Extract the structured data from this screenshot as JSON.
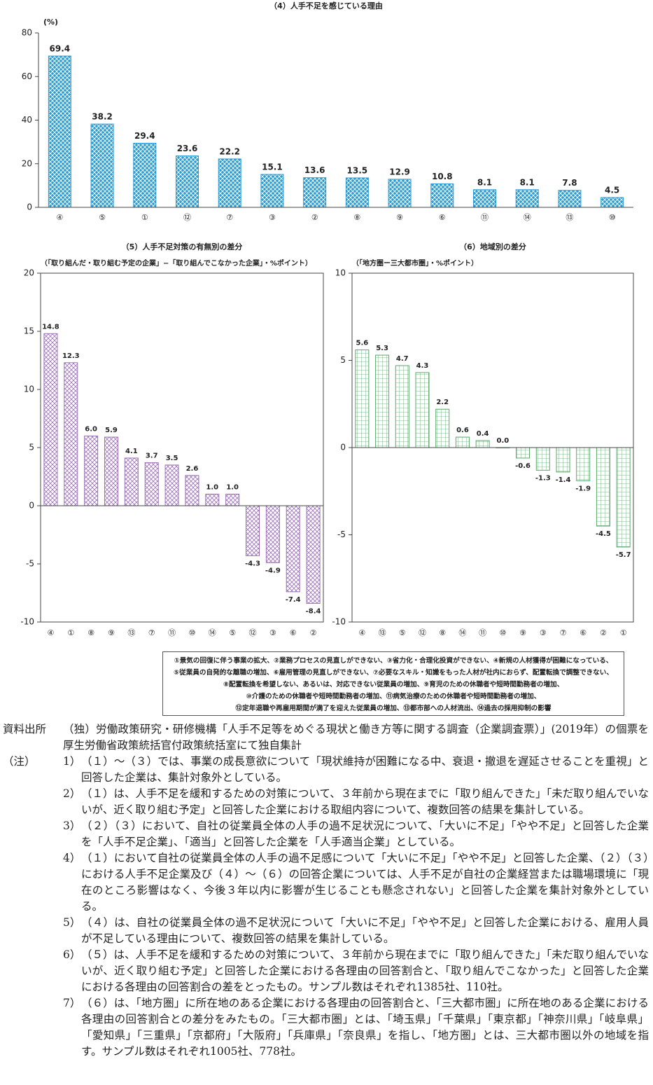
{
  "chart_data": [
    {
      "type": "bar",
      "title": "（4）人手不足を感じている理由",
      "y_label": "(%)",
      "categories": [
        "④",
        "⑤",
        "①",
        "⑫",
        "⑦",
        "③",
        "②",
        "⑧",
        "⑨",
        "⑥",
        "⑪",
        "⑭",
        "⑬",
        "⑩"
      ],
      "values": [
        69.4,
        38.2,
        29.4,
        23.6,
        22.2,
        15.1,
        13.6,
        13.5,
        12.9,
        10.8,
        8.1,
        8.1,
        7.8,
        4.5
      ],
      "color": "#2a9bd4",
      "ylim": [
        0,
        80
      ],
      "yticks": [
        0,
        20,
        40,
        60,
        80
      ]
    },
    {
      "type": "bar",
      "title": "（5）人手不足対策の有無別の差分",
      "subtitle": "（「取り組んだ・取り組む予定の企業」−「取り組んでこなかった企業」・%ポイント）",
      "categories": [
        "④",
        "①",
        "⑧",
        "⑨",
        "⑬",
        "⑦",
        "⑪",
        "⑩",
        "⑭",
        "⑤",
        "⑫",
        "③",
        "⑥",
        "②"
      ],
      "values": [
        14.8,
        12.3,
        6.0,
        5.9,
        4.1,
        3.7,
        3.5,
        2.6,
        1.0,
        1.0,
        -4.3,
        -4.9,
        -7.4,
        -8.4
      ],
      "value_labels": [
        "14.8",
        "12.3",
        "6.0",
        "5.9",
        "4.1",
        "3.7",
        "3.5",
        "2.6",
        "1.0",
        "1.0",
        "-4.3",
        "-4.9",
        "-7.4",
        "-8.4"
      ],
      "color": "#9b6fb8",
      "ylim": [
        -10,
        20
      ],
      "yticks": [
        -10,
        -5,
        0,
        5,
        10,
        15,
        20
      ]
    },
    {
      "type": "bar",
      "title": "（6）地域別の差分",
      "subtitle": "（「地方圏ー三大都市圏」・%ポイント）",
      "categories": [
        "④",
        "⑬",
        "⑤",
        "⑫",
        "⑧",
        "⑭",
        "⑪",
        "⑩",
        "⑨",
        "③",
        "⑦",
        "⑥",
        "②",
        "①"
      ],
      "values": [
        5.6,
        5.3,
        4.7,
        4.3,
        2.2,
        0.6,
        0.4,
        0.0,
        -0.6,
        -1.3,
        -1.4,
        -1.9,
        -4.5,
        -5.7
      ],
      "value_labels": [
        "5.6",
        "5.3",
        "4.7",
        "4.3",
        "2.2",
        "0.6",
        "0.4",
        "0.0",
        "-0.6",
        "-1.3",
        "-1.4",
        "-1.9",
        "-4.5",
        "-5.7"
      ],
      "color": "#5aa86a",
      "ylim": [
        -10,
        10
      ],
      "yticks": [
        -10,
        -5,
        0,
        5,
        10
      ]
    }
  ],
  "legend_box": {
    "lines": [
      "①景気の回復に伴う事業の拡大、②業務プロセスの見直しができない、③省力化・合理化投資ができない、④新規の人材獲得が困難になっている、",
      "⑤従業員の自発的な離職の増加、⑥雇用管理の見直しができない、⑦必要なスキル・知識をもった人材が社内におらず、配置転換で調整できない、",
      "⑧配置転換を希望しない、あるいは、対応できない従業員の増加、⑨育児のための休職者や短時間勤務者の増加、",
      "⑩介護のための休職者や短時間勤務者の増加、⑪病気治療のための休職者や短時間勤務者の増加、",
      "⑫定年退職や再雇用期間が満了を迎えた従業員の増加、⑬都市部への人材流出、⑭過去の採用抑制の影響"
    ]
  },
  "source": {
    "label": "資料出所",
    "text": "（独）労働政策研究・研修機構「人手不足等をめぐる現状と働き方等に関する調査（企業調査票）」(2019年）の個票を厚生労働省政策統括官付政策統括室にて独自集計"
  },
  "notes": {
    "label": "（注）",
    "items": [
      {
        "num": "1）",
        "text": "（１）～（３）では、事業の成長意欲について「現状維持が困難になる中、衰退・撤退を遅延させることを重視」と回答した企業は、集計対象外としている。"
      },
      {
        "num": "2）",
        "text": "（１）は、人手不足を緩和するための対策について、３年前から現在までに「取り組んできた」「未だ取り組んでいないが、近く取り組む予定」と回答した企業における取組内容について、複数回答の結果を集計している。"
      },
      {
        "num": "3）",
        "text": "（２）（３）において、自社の従業員全体の人手の過不足状況について、「大いに不足」「やや不足」と回答した企業を「人手不足企業」、「適当」と回答した企業を「人手適当企業」としている。"
      },
      {
        "num": "4）",
        "text": "（１）において自社の従業員全体の人手の過不足感について「大いに不足」「やや不足」と回答した企業、（２）（３）における人手不足企業及び（４）～（６）の回答企業については、人手不足が自社の企業経営または職場環境に「現在のところ影響はなく、今後３年以内に影響が生じることも懸念されない」と回答した企業を集計対象外としている。"
      },
      {
        "num": "5）",
        "text": "（４）は、自社の従業員全体の過不足状況について「大いに不足」「やや不足」と回答した企業における、雇用人員が不足している理由について、複数回答の結果を集計している。"
      },
      {
        "num": "6）",
        "text": "（５）は、人手不足を緩和するための対策について、３年前から現在までに「取り組んできた」「未だ取り組んでいないが、近く取り組む予定」と回答した企業における各理由の回答割合と、「取り組んでこなかった」と回答した企業における各理由の回答割合の差をとったもの。サンプル数はそれぞれ1385社、110社。"
      },
      {
        "num": "7）",
        "text": "（６）は、「地方圏」に所在地のある企業における各理由の回答割合と、「三大都市圏」に所在地のある企業における各理由の回答割合との差分をみたもの。「三大都市圏」とは、「埼玉県」「千葉県」「東京都」「神奈川県」「岐阜県」「愛知県」「三重県」「京都府」「大阪府」「兵庫県」「奈良県」を指し、「地方圏」とは、三大都市圏以外の地域を指す。サンプル数はそれぞれ1005社、778社。"
      }
    ]
  }
}
